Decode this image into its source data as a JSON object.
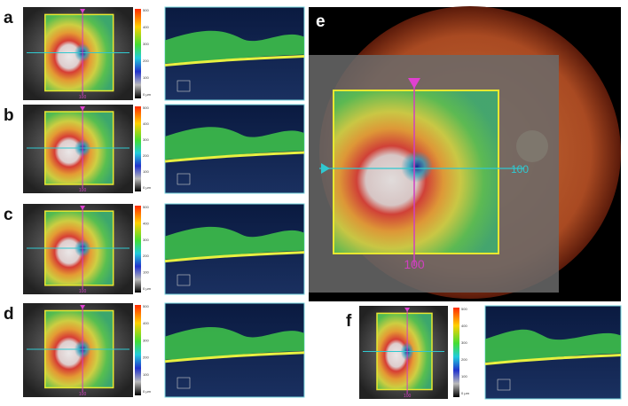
{
  "panels": [
    {
      "label": "a"
    },
    {
      "label": "b"
    },
    {
      "label": "c"
    },
    {
      "label": "d"
    },
    {
      "label": "e"
    },
    {
      "label": "f"
    }
  ],
  "colorbar": {
    "ticks": [
      "500",
      "400",
      "300",
      "200",
      "100",
      "0 µm"
    ]
  },
  "map_label": "100"
}
